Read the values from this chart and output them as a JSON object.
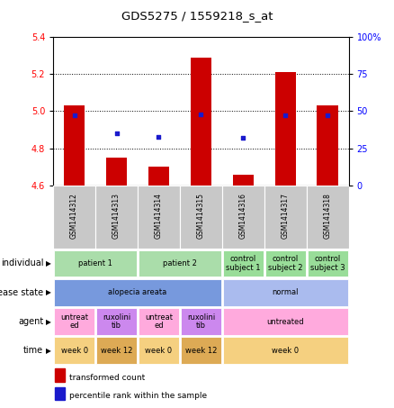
{
  "title": "GDS5275 / 1559218_s_at",
  "samples": [
    "GSM1414312",
    "GSM1414313",
    "GSM1414314",
    "GSM1414315",
    "GSM1414316",
    "GSM1414317",
    "GSM1414318"
  ],
  "transformed_count": [
    5.03,
    4.75,
    4.7,
    5.29,
    4.66,
    5.21,
    5.03
  ],
  "percentile_rank": [
    47,
    35,
    33,
    48,
    32,
    47,
    47
  ],
  "ylim_left": [
    4.6,
    5.4
  ],
  "ylim_right": [
    0,
    100
  ],
  "yticks_left": [
    4.6,
    4.8,
    5.0,
    5.2,
    5.4
  ],
  "yticks_right": [
    0,
    25,
    50,
    75,
    100
  ],
  "bar_color": "#cc0000",
  "dot_color": "#1a1acc",
  "bar_bottom": 4.6,
  "annotation_rows": [
    {
      "label": "individual",
      "cells": [
        {
          "text": "patient 1",
          "span": 2,
          "color": "#aaddaa"
        },
        {
          "text": "patient 2",
          "span": 2,
          "color": "#aaddaa"
        },
        {
          "text": "control\nsubject 1",
          "span": 1,
          "color": "#99dd99"
        },
        {
          "text": "control\nsubject 2",
          "span": 1,
          "color": "#99dd99"
        },
        {
          "text": "control\nsubject 3",
          "span": 1,
          "color": "#99dd99"
        }
      ]
    },
    {
      "label": "disease state",
      "cells": [
        {
          "text": "alopecia areata",
          "span": 4,
          "color": "#7799dd"
        },
        {
          "text": "normal",
          "span": 3,
          "color": "#aabbee"
        }
      ]
    },
    {
      "label": "agent",
      "cells": [
        {
          "text": "untreat\ned",
          "span": 1,
          "color": "#ffaadd"
        },
        {
          "text": "ruxolini\ntib",
          "span": 1,
          "color": "#cc88ee"
        },
        {
          "text": "untreat\ned",
          "span": 1,
          "color": "#ffaadd"
        },
        {
          "text": "ruxolini\ntib",
          "span": 1,
          "color": "#cc88ee"
        },
        {
          "text": "untreated",
          "span": 3,
          "color": "#ffaadd"
        }
      ]
    },
    {
      "label": "time",
      "cells": [
        {
          "text": "week 0",
          "span": 1,
          "color": "#f5d080"
        },
        {
          "text": "week 12",
          "span": 1,
          "color": "#ddaa55"
        },
        {
          "text": "week 0",
          "span": 1,
          "color": "#f5d080"
        },
        {
          "text": "week 12",
          "span": 1,
          "color": "#ddaa55"
        },
        {
          "text": "week 0",
          "span": 3,
          "color": "#f5d080"
        }
      ]
    }
  ],
  "legend": [
    {
      "color": "#cc0000",
      "label": "transformed count"
    },
    {
      "color": "#1a1acc",
      "label": "percentile rank within the sample"
    }
  ]
}
